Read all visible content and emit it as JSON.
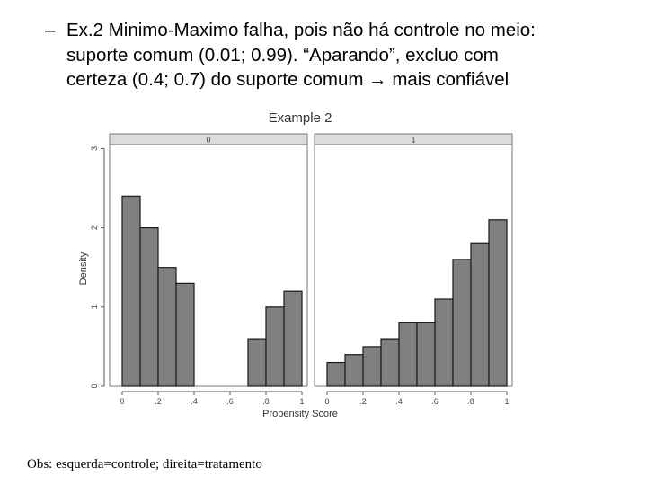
{
  "slide": {
    "bullet_marker": "–",
    "bullet_lines": [
      "Ex.2 Minimo-Maximo falha, pois não há controle no meio:",
      "suporte comum  (0.01; 0.99). “Aparando”, excluo com",
      "certeza  (0.4; 0.7) do suporte comum → mais confiável"
    ],
    "footnote": "Obs:  esquerda=controle; direita=tratamento"
  },
  "chart_data": {
    "type": "bar",
    "title": "Example 2",
    "xlabel": "Propensity Score",
    "ylabel": "Density",
    "xlim": [
      0,
      1
    ],
    "ylim": [
      0,
      3
    ],
    "xticks": [
      0,
      0.2,
      0.4,
      0.6,
      0.8,
      1
    ],
    "xtick_labels": [
      "0",
      ".2",
      ".4",
      ".6",
      ".8",
      "1"
    ],
    "yticks": [
      0,
      1,
      2,
      3
    ],
    "ytick_labels": [
      "0",
      "1",
      "2",
      "3"
    ],
    "bar_color": "#808080",
    "strip_color": "#dcdcdc",
    "panels": [
      {
        "label": "0",
        "bins": [
          {
            "x0": 0.0,
            "x1": 0.1,
            "density": 2.4
          },
          {
            "x0": 0.1,
            "x1": 0.2,
            "density": 2.0
          },
          {
            "x0": 0.2,
            "x1": 0.3,
            "density": 1.5
          },
          {
            "x0": 0.3,
            "x1": 0.4,
            "density": 1.3
          },
          {
            "x0": 0.7,
            "x1": 0.8,
            "density": 0.6
          },
          {
            "x0": 0.8,
            "x1": 0.9,
            "density": 1.0
          },
          {
            "x0": 0.9,
            "x1": 1.0,
            "density": 1.2
          }
        ]
      },
      {
        "label": "1",
        "bins": [
          {
            "x0": 0.0,
            "x1": 0.1,
            "density": 0.3
          },
          {
            "x0": 0.1,
            "x1": 0.2,
            "density": 0.4
          },
          {
            "x0": 0.2,
            "x1": 0.3,
            "density": 0.5
          },
          {
            "x0": 0.3,
            "x1": 0.4,
            "density": 0.6
          },
          {
            "x0": 0.4,
            "x1": 0.5,
            "density": 0.8
          },
          {
            "x0": 0.5,
            "x1": 0.6,
            "density": 0.8
          },
          {
            "x0": 0.6,
            "x1": 0.7,
            "density": 1.1
          },
          {
            "x0": 0.7,
            "x1": 0.8,
            "density": 1.6
          },
          {
            "x0": 0.8,
            "x1": 0.9,
            "density": 1.8
          },
          {
            "x0": 0.9,
            "x1": 1.0,
            "density": 2.1
          }
        ]
      }
    ]
  }
}
